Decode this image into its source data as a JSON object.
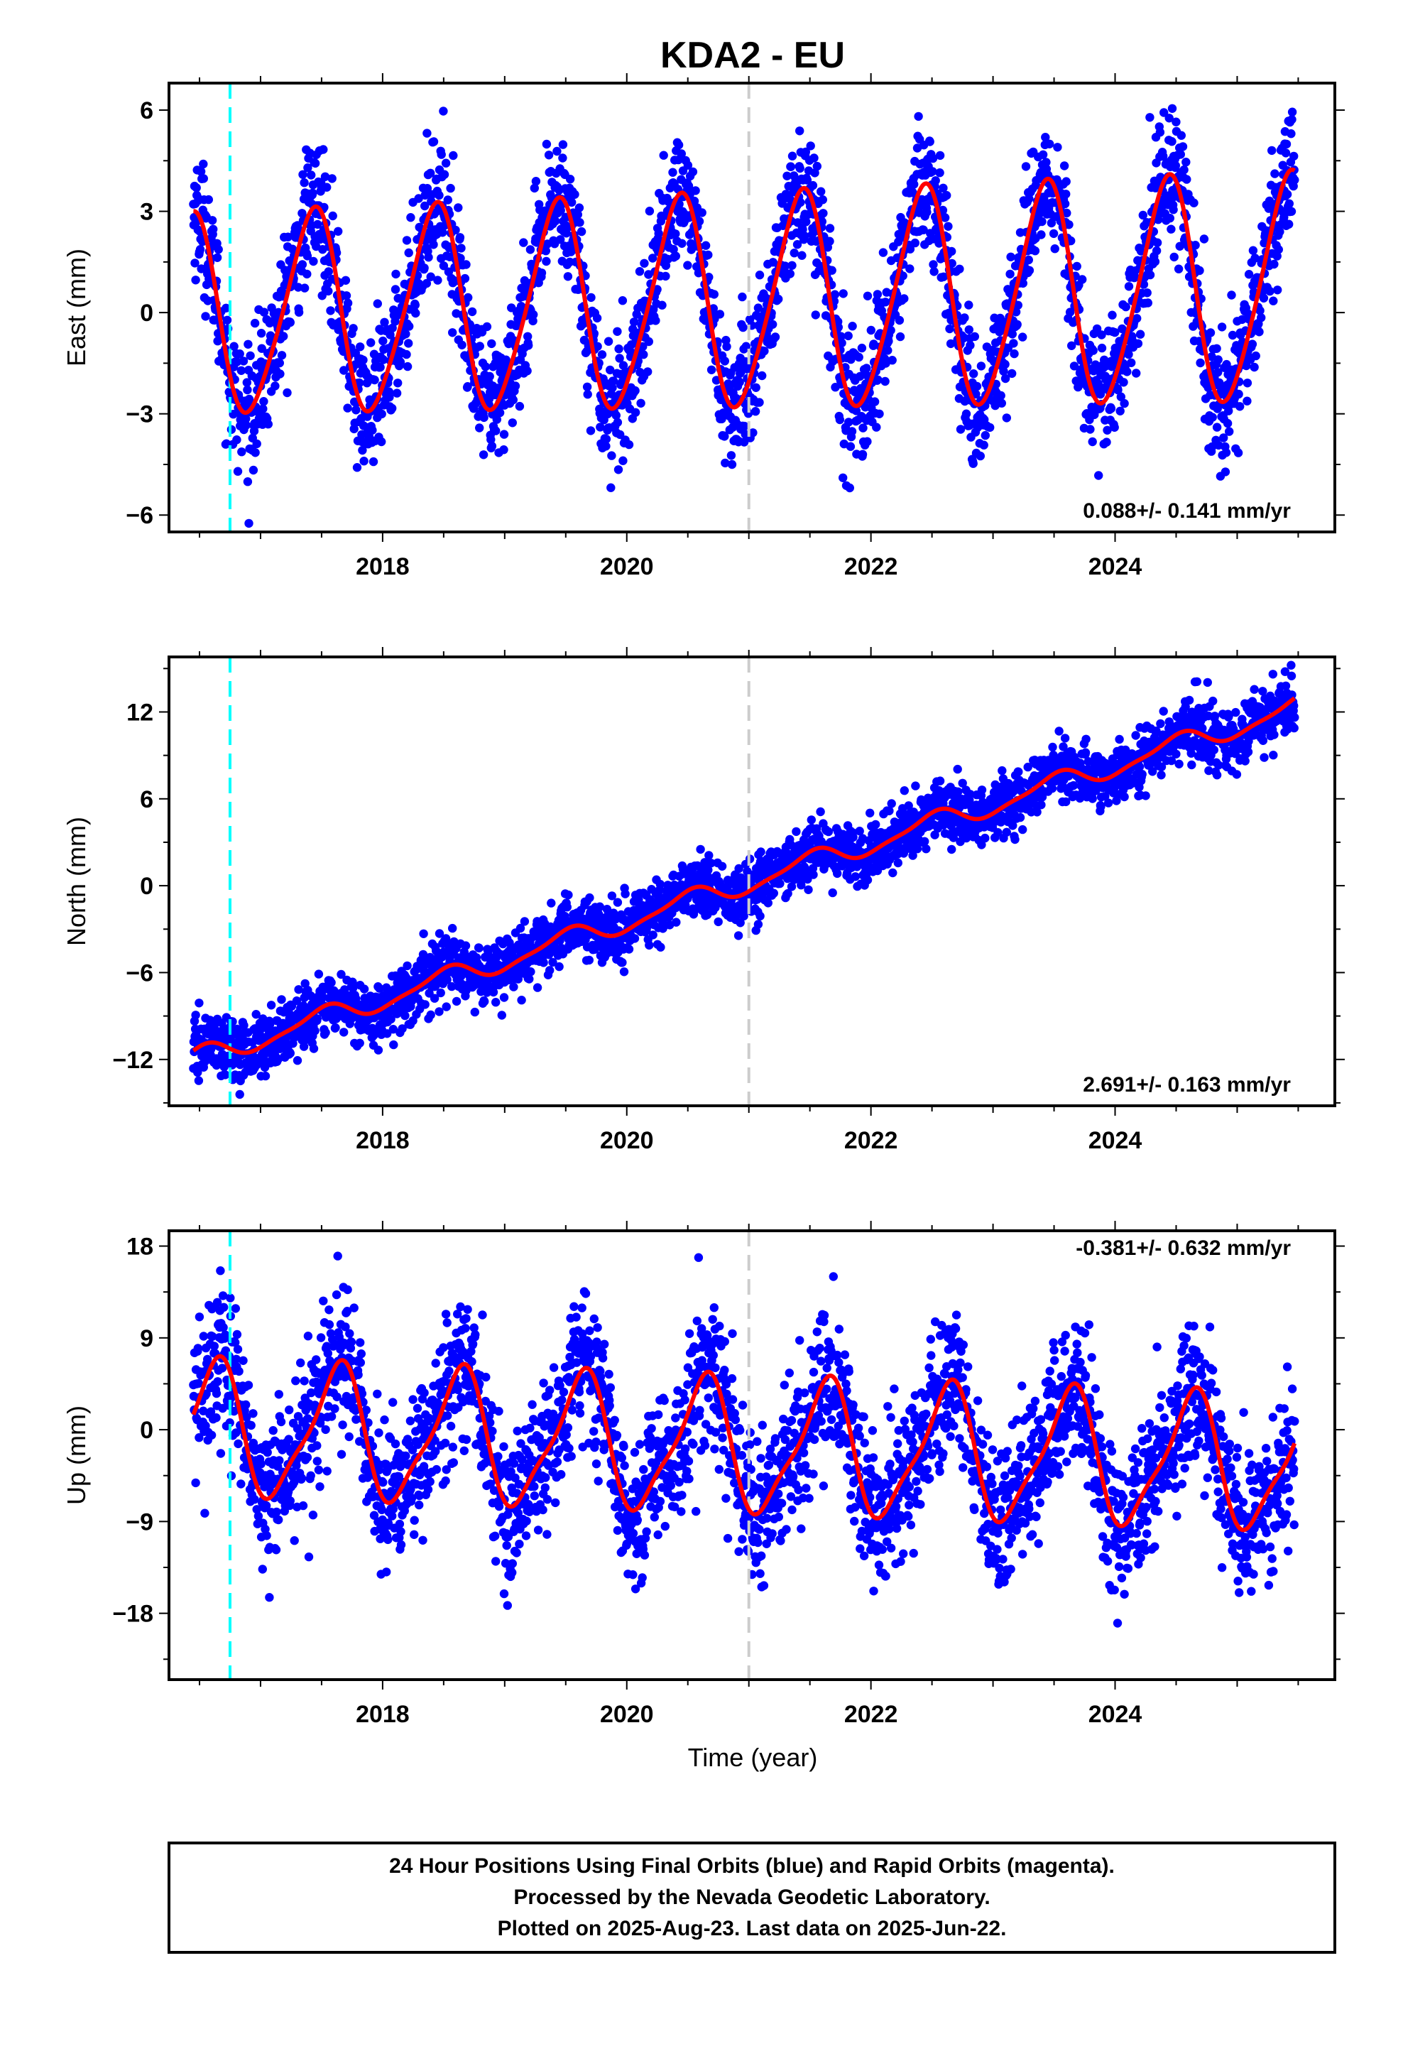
{
  "title": "KDA2 - EU",
  "xlabel": "Time (year)",
  "colors": {
    "points": "#0000ff",
    "fit": "#ff0000",
    "equipment_change": "#00ffff",
    "event": "#cccccc"
  },
  "footer": {
    "line1": "24 Hour Positions Using Final Orbits (blue) and Rapid Orbits (magenta).",
    "line2": "Processed by the Nevada Geodetic Laboratory.",
    "line3": "Plotted on 2025-Aug-23. Last data on 2025-Jun-22."
  },
  "chart_data": [
    {
      "type": "scatter",
      "name": "East",
      "ylabel": "East (mm)",
      "xlim": [
        2016.25,
        2025.8
      ],
      "ylim": [
        -6.5,
        6.8
      ],
      "yticks": [
        -6,
        -3,
        0,
        3,
        6
      ],
      "xticks": [
        2018,
        2020,
        2022,
        2024
      ],
      "rate": "0.088+/- 0.141 mm/yr",
      "rate_position": "bottom-right",
      "equipment_change_year": 2016.75,
      "event_year": 2021.0,
      "data_start": 2016.45,
      "data_end": 2025.47,
      "fit": {
        "offset": -0.1,
        "trend_mm_per_yr": 0.088,
        "annual_amp": 2.9,
        "annual_amp_growth": 0.05,
        "peak_phase": 0.42,
        "semiannual_amp": 0.4
      },
      "scatter_sigma": 0.95,
      "point_count": 2900
    },
    {
      "type": "scatter",
      "name": "North",
      "ylabel": "North (mm)",
      "xlim": [
        2016.25,
        2025.8
      ],
      "ylim": [
        -15.2,
        15.8
      ],
      "yticks": [
        -12,
        -6,
        0,
        6,
        12
      ],
      "xticks": [
        2018,
        2020,
        2022,
        2024
      ],
      "rate": "2.691+/- 0.163 mm/yr",
      "rate_position": "bottom-right",
      "equipment_change_year": 2016.75,
      "event_year": 2021.0,
      "data_start": 2016.45,
      "data_end": 2025.47,
      "fit": {
        "offset": -12.0,
        "trend_mm_per_yr": 2.691,
        "annual_amp": 0.7,
        "annual_amp_growth": 0.0,
        "peak_phase": 0.5,
        "semiannual_amp": 0.2
      },
      "scatter_sigma": 1.05,
      "point_count": 2900
    },
    {
      "type": "scatter",
      "name": "Up",
      "ylabel": "Up (mm)",
      "xlim": [
        2016.25,
        2025.8
      ],
      "ylim": [
        -24.5,
        19.5
      ],
      "yticks": [
        -18,
        -9,
        0,
        9,
        18
      ],
      "xticks": [
        2018,
        2020,
        2022,
        2024
      ],
      "rate": "-0.381+/- 0.632 mm/yr",
      "rate_position": "top-right",
      "equipment_change_year": 2016.75,
      "event_year": 2021.0,
      "data_start": 2016.45,
      "data_end": 2025.47,
      "fit": {
        "offset": 0.0,
        "trend_mm_per_yr": -0.381,
        "annual_amp": 6.3,
        "annual_amp_growth": 0.0,
        "peak_phase": 0.62,
        "semiannual_amp": 1.6
      },
      "scatter_sigma": 3.6,
      "point_count": 2900
    }
  ]
}
